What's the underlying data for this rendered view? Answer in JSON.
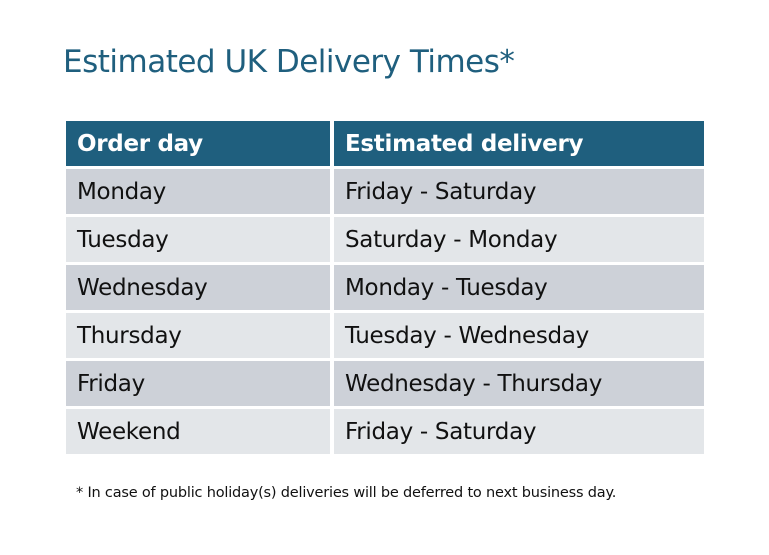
{
  "title": "Estimated UK Delivery Times*",
  "table": {
    "headers": [
      "Order day",
      "Estimated delivery"
    ],
    "rows": [
      [
        "Monday",
        "Friday - Saturday"
      ],
      [
        "Tuesday",
        "Saturday - Monday"
      ],
      [
        "Wednesday",
        "Monday - Tuesday"
      ],
      [
        "Thursday",
        "Tuesday - Wednesday"
      ],
      [
        "Friday",
        "Wednesday - Thursday"
      ],
      [
        "Weekend",
        "Friday - Saturday"
      ]
    ]
  },
  "footnote": "* In case of public holiday(s) deliveries will be deferred to next business day.",
  "colors": {
    "header": "#1f5f7e",
    "row_odd": "#cdd1d8",
    "row_even": "#e3e6e9"
  }
}
